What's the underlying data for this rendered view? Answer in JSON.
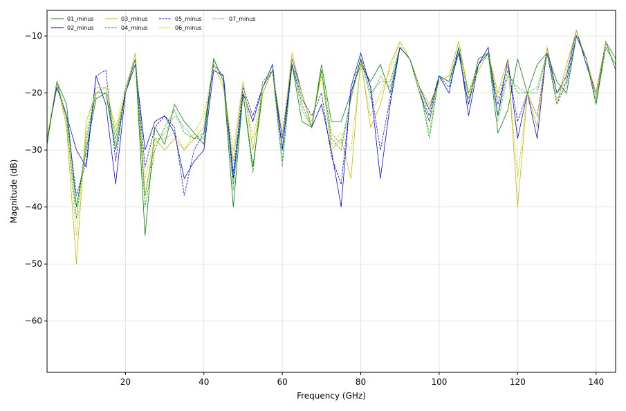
{
  "chart_data": {
    "type": "line",
    "title": "",
    "xlabel": "Frequency (GHz)",
    "ylabel": "Magnitude (dB)",
    "xlim": [
      0,
      145
    ],
    "ylim": [
      -69,
      -5.5
    ],
    "xticks": [
      20,
      40,
      60,
      80,
      100,
      120,
      140
    ],
    "yticks": [
      -60,
      -50,
      -40,
      -30,
      -20,
      -10
    ],
    "grid": true,
    "legend_position": "top-left",
    "legend_columns": 4,
    "x": [
      0.0,
      2.5,
      5.0,
      7.5,
      10.0,
      12.5,
      15.0,
      17.5,
      20.0,
      22.5,
      25.0,
      27.5,
      30.0,
      32.5,
      35.0,
      37.5,
      40.0,
      42.5,
      45.0,
      47.5,
      50.0,
      52.5,
      55.0,
      57.5,
      60.0,
      62.5,
      65.0,
      67.5,
      70.0,
      72.5,
      75.0,
      77.5,
      80.0,
      82.5,
      85.0,
      87.5,
      90.0,
      92.5,
      95.0,
      97.5,
      100.0,
      102.5,
      105.0,
      107.5,
      110.0,
      112.5,
      115.0,
      117.5,
      120.0,
      122.5,
      125.0,
      127.5,
      130.0,
      132.5,
      135.0,
      137.5,
      140.0,
      142.5,
      145.0
    ],
    "series": [
      {
        "name": "01_minus",
        "color": "#008000",
        "dash": "solid",
        "values": [
          -29,
          -18,
          -22,
          -40,
          -30,
          -21,
          -20,
          -30,
          -20,
          -14,
          -45,
          -26,
          -29,
          -22,
          -25,
          -27,
          -29,
          -14,
          -18,
          -40,
          -20,
          -33,
          -20,
          -16,
          -30,
          -15,
          -25,
          -26,
          -15,
          -25,
          -25,
          -20,
          -15,
          -18,
          -15,
          -20,
          -12,
          -14,
          -20,
          -25,
          -17,
          -18,
          -13,
          -22,
          -14,
          -13,
          -27,
          -23,
          -14,
          -20,
          -15,
          -13,
          -18,
          -20,
          -10,
          -14,
          -22,
          -11,
          -16
        ]
      },
      {
        "name": "02_minus",
        "color": "#0000ff",
        "dash": "solid",
        "values": [
          -28,
          -19,
          -24,
          -30,
          -33,
          -17,
          -22,
          -36,
          -20,
          -15,
          -30,
          -25,
          -24,
          -27,
          -35,
          -32,
          -30,
          -16,
          -17,
          -35,
          -20,
          -25,
          -19,
          -15,
          -30,
          -14,
          -20,
          -26,
          -22,
          -30,
          -40,
          -19,
          -13,
          -19,
          -35,
          -22,
          -12,
          -14,
          -19,
          -23,
          -17,
          -20,
          -12,
          -24,
          -15,
          -12,
          -24,
          -14,
          -28,
          -20,
          -28,
          -12,
          -20,
          -17,
          -9,
          -15,
          -20,
          -11,
          -14
        ]
      },
      {
        "name": "03_minus",
        "color": "#c8b400",
        "dash": "solid",
        "values": [
          -28,
          -18,
          -26,
          -50,
          -25,
          -20,
          -19,
          -27,
          -20,
          -13,
          -38,
          -28,
          -30,
          -28,
          -30,
          -28,
          -26,
          -15,
          -19,
          -32,
          -18,
          -30,
          -20,
          -16,
          -28,
          -13,
          -20,
          -26,
          -16,
          -30,
          -28,
          -35,
          -14,
          -26,
          -22,
          -15,
          -11,
          -14,
          -19,
          -22,
          -18,
          -17,
          -11,
          -20,
          -16,
          -13,
          -20,
          -14,
          -40,
          -20,
          -26,
          -12,
          -22,
          -15,
          -9,
          -14,
          -20,
          -11,
          -14
        ]
      },
      {
        "name": "04_minus",
        "color": "#00a000",
        "dash": "dashed",
        "values": [
          -29,
          -18,
          -25,
          -42,
          -28,
          -20,
          -20,
          -28,
          -20,
          -14,
          -40,
          -30,
          -26,
          -23,
          -27,
          -28,
          -27,
          -14,
          -18,
          -36,
          -20,
          -34,
          -18,
          -16,
          -32,
          -15,
          -22,
          -26,
          -16,
          -28,
          -30,
          -21,
          -14,
          -20,
          -18,
          -18,
          -12,
          -14,
          -19,
          -28,
          -17,
          -18,
          -12,
          -20,
          -15,
          -13,
          -24,
          -16,
          -20,
          -20,
          -20,
          -13,
          -20,
          -18,
          -10,
          -14,
          -22,
          -12,
          -15
        ]
      },
      {
        "name": "05_minus",
        "color": "#0000ff",
        "dash": "dashed",
        "values": [
          -28,
          -19,
          -24,
          -38,
          -32,
          -17,
          -16,
          -32,
          -19,
          -14,
          -33,
          -26,
          -24,
          -26,
          -38,
          -30,
          -27,
          -15,
          -17,
          -34,
          -19,
          -24,
          -19,
          -16,
          -28,
          -15,
          -21,
          -24,
          -20,
          -31,
          -36,
          -20,
          -14,
          -19,
          -30,
          -21,
          -12,
          -14,
          -20,
          -24,
          -17,
          -19,
          -13,
          -22,
          -15,
          -13,
          -22,
          -15,
          -25,
          -20,
          -24,
          -13,
          -22,
          -18,
          -10,
          -14,
          -21,
          -11,
          -14
        ]
      },
      {
        "name": "06_minus",
        "color": "#c8c800",
        "dash": "dashed",
        "values": [
          -28,
          -18,
          -25,
          -45,
          -27,
          -19,
          -19,
          -26,
          -19,
          -14,
          -35,
          -28,
          -28,
          -27,
          -30,
          -27,
          -24,
          -15,
          -19,
          -30,
          -18,
          -28,
          -19,
          -16,
          -27,
          -14,
          -21,
          -25,
          -17,
          -29,
          -27,
          -30,
          -15,
          -24,
          -20,
          -16,
          -11,
          -14,
          -20,
          -23,
          -18,
          -17,
          -11,
          -21,
          -16,
          -13,
          -21,
          -15,
          -35,
          -20,
          -24,
          -12,
          -22,
          -16,
          -9,
          -14,
          -21,
          -11,
          -14
        ]
      },
      {
        "name": "07_minus",
        "color": "#008000",
        "dash": "dotted",
        "values": [
          -29,
          -18,
          -24,
          -40,
          -29,
          -20,
          -20,
          -29,
          -20,
          -14,
          -38,
          -29,
          -27,
          -24,
          -26,
          -28,
          -28,
          -14,
          -18,
          -37,
          -20,
          -33,
          -19,
          -16,
          -33,
          -15,
          -23,
          -26,
          -16,
          -27,
          -29,
          -21,
          -14,
          -21,
          -17,
          -19,
          -12,
          -14,
          -19,
          -27,
          -17,
          -18,
          -12,
          -21,
          -15,
          -13,
          -25,
          -17,
          -19,
          -20,
          -19,
          -13,
          -21,
          -19,
          -10,
          -14,
          -22,
          -12,
          -15
        ]
      }
    ]
  }
}
